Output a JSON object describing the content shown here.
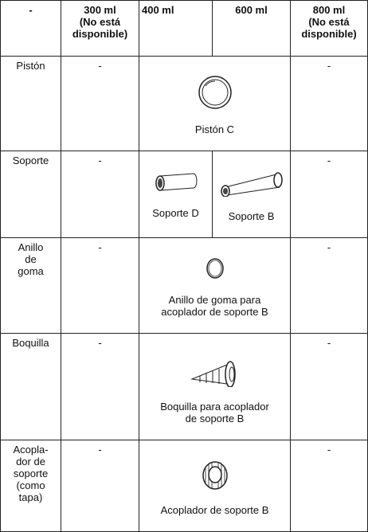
{
  "table": {
    "header": [
      "-",
      "300 ml\n(No está\ndisponible)",
      "400 ml",
      "600 ml",
      "800 ml\n(No está\ndisponible)"
    ],
    "rows": [
      {
        "label": "Pistón",
        "cells": [
          "-",
          "Pistón C",
          "-"
        ]
      },
      {
        "label": "Soporte",
        "cells": [
          "-",
          "Soporte D",
          "Soporte B",
          "-"
        ]
      },
      {
        "label": "Anillo\nde\ngoma",
        "cells": [
          "-",
          "Anillo de goma para\nacoplador de soporte B",
          "-"
        ]
      },
      {
        "label": "Boquilla",
        "cells": [
          "-",
          "Boquilla para acoplador\nde soporte B",
          "-"
        ]
      },
      {
        "label": "Acopla-\ndor de\nsoporte\n(como\ntapa)",
        "cells": [
          "-",
          "Acoplador de soporte B",
          "-"
        ]
      }
    ]
  }
}
